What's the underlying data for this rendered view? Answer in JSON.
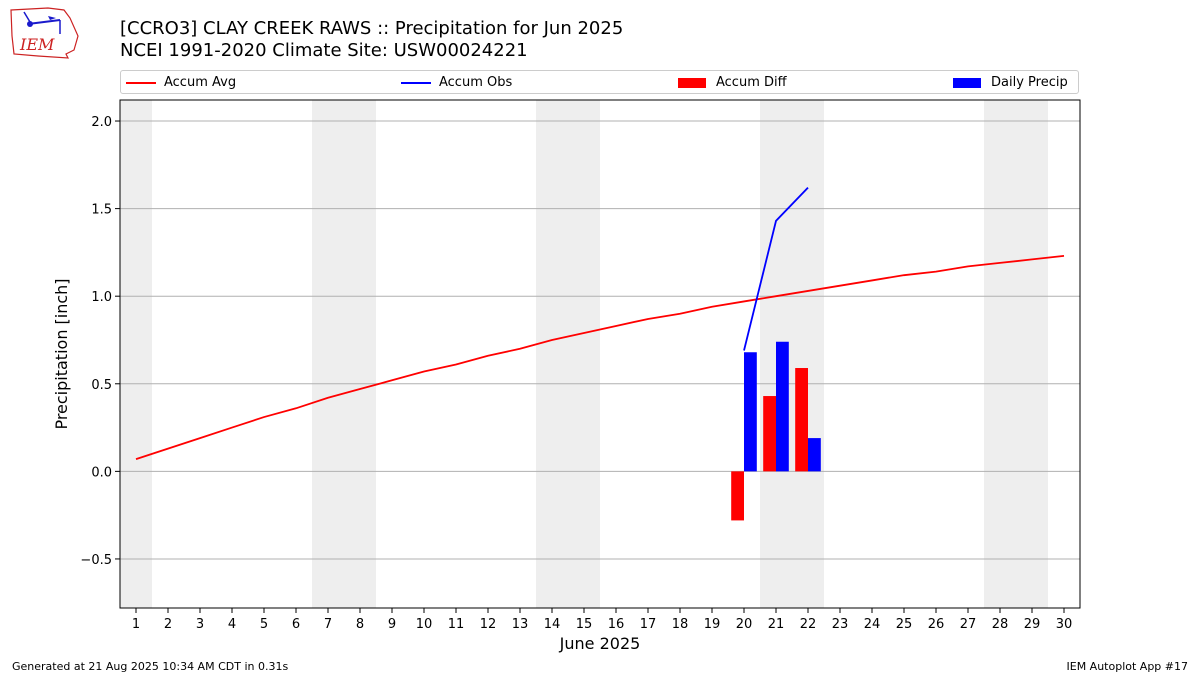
{
  "header": {
    "title_line1": "[CCRO3] CLAY CREEK RAWS :: Precipitation for Jun 2025",
    "title_line2": "NCEI 1991-2020 Climate Site: USW00024221"
  },
  "logo": {
    "text": "IEM",
    "icon": "iem-logo-icon"
  },
  "legend": {
    "items": [
      {
        "label": "Accum Avg",
        "kind": "line",
        "color": "#ff0000"
      },
      {
        "label": "Accum Obs",
        "kind": "line",
        "color": "#0000ff"
      },
      {
        "label": "Accum Diff",
        "kind": "bar",
        "color": "#ff0000"
      },
      {
        "label": "Daily Precip",
        "kind": "bar",
        "color": "#0000ff"
      }
    ]
  },
  "footer": {
    "generated": "Generated at 21 Aug 2025 10:34 AM CDT in 0.31s",
    "app": "IEM Autoplot App #17"
  },
  "chart_data": {
    "type": "line",
    "xlabel": "June 2025",
    "ylabel": "Precipitation [inch]",
    "xlim": [
      0.5,
      30.5
    ],
    "ylim": [
      -0.78,
      2.12
    ],
    "yticks": [
      -0.5,
      0.0,
      0.5,
      1.0,
      1.5,
      2.0
    ],
    "ytick_labels": [
      "−0.5",
      "0.0",
      "0.5",
      "1.0",
      "1.5",
      "2.0"
    ],
    "xticks": [
      1,
      2,
      3,
      4,
      5,
      6,
      7,
      8,
      9,
      10,
      11,
      12,
      13,
      14,
      15,
      16,
      17,
      18,
      19,
      20,
      21,
      22,
      23,
      24,
      25,
      26,
      27,
      28,
      29,
      30
    ],
    "grid": "horizontal",
    "weekend_shading": [
      [
        0.5,
        1.5
      ],
      [
        6.5,
        8.5
      ],
      [
        13.5,
        15.5
      ],
      [
        20.5,
        22.5
      ],
      [
        27.5,
        29.5
      ]
    ],
    "weekend_color": "#eeeeee",
    "accum_avg": {
      "name": "Accum Avg",
      "color": "#ff0000",
      "x": [
        1,
        2,
        3,
        4,
        5,
        6,
        7,
        8,
        9,
        10,
        11,
        12,
        13,
        14,
        15,
        16,
        17,
        18,
        19,
        20,
        21,
        22,
        23,
        24,
        25,
        26,
        27,
        28,
        29,
        30
      ],
      "y": [
        0.07,
        0.13,
        0.19,
        0.25,
        0.31,
        0.36,
        0.42,
        0.47,
        0.52,
        0.57,
        0.61,
        0.66,
        0.7,
        0.75,
        0.79,
        0.83,
        0.87,
        0.9,
        0.94,
        0.97,
        1.0,
        1.03,
        1.06,
        1.09,
        1.12,
        1.14,
        1.17,
        1.19,
        1.21,
        1.23
      ]
    },
    "accum_obs": {
      "name": "Accum Obs",
      "color": "#0000ff",
      "x": [
        20,
        21,
        22
      ],
      "y": [
        0.69,
        1.43,
        1.62
      ]
    },
    "accum_diff": {
      "name": "Accum Diff",
      "color": "#ff0000",
      "x": [
        20,
        21,
        22
      ],
      "y": [
        -0.28,
        0.43,
        0.59
      ]
    },
    "daily_precip": {
      "name": "Daily Precip",
      "color": "#0000ff",
      "x": [
        20,
        21,
        22
      ],
      "y": [
        0.68,
        0.74,
        0.19
      ]
    }
  }
}
